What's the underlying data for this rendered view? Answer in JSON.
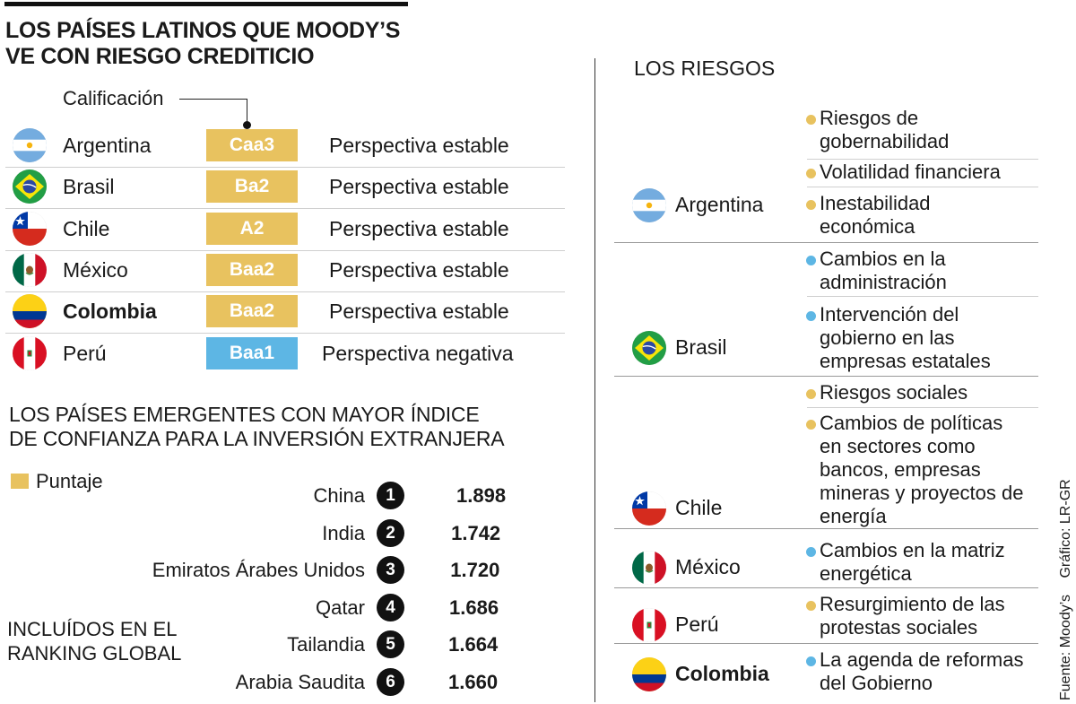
{
  "title": [
    "LOS PAÍSES LATINOS QUE MOODY’S",
    "VE CON RIESGO CREDITICIO"
  ],
  "calificacion_label": "Calificación",
  "ratings": [
    {
      "country": "Argentina",
      "rating": "Caa3",
      "outlook": "Perspectiva estable",
      "flag": "argentina-flag-icon",
      "badge_color": "#e8c25f"
    },
    {
      "country": "Brasil",
      "rating": "Ba2",
      "outlook": "Perspectiva estable",
      "flag": "brasil-flag-icon",
      "badge_color": "#e8c25f"
    },
    {
      "country": "Chile",
      "rating": "A2",
      "outlook": "Perspectiva estable",
      "flag": "chile-flag-icon",
      "badge_color": "#e8c25f"
    },
    {
      "country": "México",
      "rating": "Baa2",
      "outlook": "Perspectiva estable",
      "flag": "mexico-flag-icon",
      "badge_color": "#e8c25f"
    },
    {
      "country": "Colombia",
      "rating": "Baa2",
      "outlook": "Perspectiva estable",
      "flag": "colombia-flag-icon",
      "badge_color": "#e8c25f"
    },
    {
      "country": "Perú",
      "rating": "Baa1",
      "outlook": "Perspectiva negativa",
      "flag": "peru-flag-icon",
      "badge_color": "#5db6e4"
    }
  ],
  "emerging_title": [
    "LOS PAÍSES EMERGENTES CON MAYOR ÍNDICE",
    "DE CONFIANZA PARA LA INVERSIÓN EXTRANJERA"
  ],
  "legend": "Puntaje",
  "included_note": [
    "INCLUÍDOS EN EL",
    "RANKING GLOBAL"
  ],
  "chart_data": {
    "type": "bar",
    "orientation": "horizontal",
    "series_label": "Puntaje",
    "categories": [
      "China",
      "India",
      "Emiratos Árabes Unidos",
      "Qatar",
      "Tailandia",
      "Arabia Saudita"
    ],
    "ranks": [
      "1",
      "2",
      "3",
      "4",
      "5",
      "6"
    ],
    "values": [
      1.898,
      1.742,
      1.72,
      1.686,
      1.664,
      1.66
    ],
    "value_labels": [
      "1.898",
      "1.742",
      "1.720",
      "1.686",
      "1.664",
      "1.660"
    ],
    "bar_color": "#e8c25f"
  },
  "risks_title": "LOS RIESGOS",
  "risks": [
    {
      "country": "Argentina",
      "flag": "argentina-flag-icon",
      "items": [
        {
          "text": [
            "Riesgos de",
            "gobernabilidad"
          ],
          "color": "#e8c25f"
        },
        {
          "text": [
            "Volatilidad financiera"
          ],
          "color": "#e8c25f"
        },
        {
          "text": [
            "Inestabilidad",
            "económica"
          ],
          "color": "#e8c25f"
        }
      ]
    },
    {
      "country": "Brasil",
      "flag": "brasil-flag-icon",
      "items": [
        {
          "text": [
            "Cambios en la",
            "administración"
          ],
          "color": "#5db6e4"
        },
        {
          "text": [
            "Intervención del",
            "gobierno en las",
            "empresas estatales"
          ],
          "color": "#5db6e4"
        }
      ]
    },
    {
      "country": "Chile",
      "flag": "chile-flag-icon",
      "items": [
        {
          "text": [
            "Riesgos sociales"
          ],
          "color": "#e8c25f"
        },
        {
          "text": [
            "Cambios de políticas",
            "en sectores como",
            "bancos, empresas",
            "mineras y proyectos de",
            "energía"
          ],
          "color": "#e8c25f"
        }
      ]
    },
    {
      "country": "México",
      "flag": "mexico-flag-icon",
      "items": [
        {
          "text": [
            "Cambios en la matriz",
            "energética"
          ],
          "color": "#5db6e4"
        }
      ]
    },
    {
      "country": "Perú",
      "flag": "peru-flag-icon",
      "items": [
        {
          "text": [
            "Resurgimiento de las",
            "protestas sociales"
          ],
          "color": "#e8c25f"
        }
      ]
    },
    {
      "country": "Colombia",
      "flag": "colombia-flag-icon",
      "items": [
        {
          "text": [
            "La agenda de reformas",
            "del Gobierno"
          ],
          "color": "#5db6e4"
        }
      ]
    }
  ],
  "credits": {
    "source": "Fuente: Moody’s",
    "graphic": "Gráfico: LR-GR"
  }
}
